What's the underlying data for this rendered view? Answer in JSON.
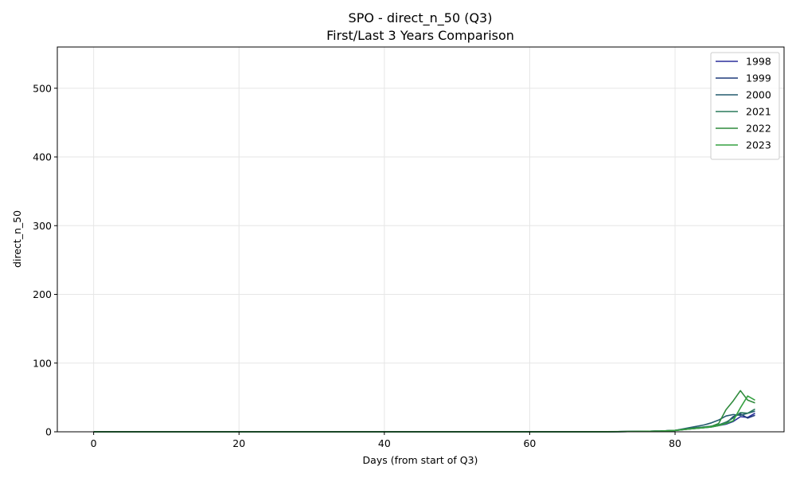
{
  "chart_data": {
    "type": "line",
    "title": "SPO - direct_n_50 (Q3)",
    "subtitle": "First/Last 3 Years Comparison",
    "xlabel": "Days (from start of Q3)",
    "ylabel": "direct_n_50",
    "xlim": [
      -5,
      95
    ],
    "ylim": [
      0,
      560
    ],
    "xticks": [
      0,
      20,
      40,
      60,
      80
    ],
    "yticks": [
      0,
      100,
      200,
      300,
      400,
      500
    ],
    "grid": true,
    "legend_position": "top-right",
    "series": [
      {
        "name": "1998",
        "color": "#2b2f9c",
        "x": [
          0,
          10,
          20,
          30,
          40,
          50,
          60,
          65,
          70,
          75,
          78,
          80,
          82,
          84,
          85,
          86,
          87,
          88,
          89,
          90,
          91
        ],
        "y": [
          0,
          0,
          0,
          0,
          0,
          0,
          0,
          0,
          0,
          0.5,
          1,
          2,
          4,
          6,
          7,
          9,
          11,
          15,
          22,
          21,
          27
        ]
      },
      {
        "name": "1999",
        "color": "#1f3a7a",
        "x": [
          0,
          10,
          20,
          30,
          40,
          50,
          60,
          65,
          70,
          75,
          78,
          80,
          82,
          84,
          85,
          86,
          87,
          88,
          89,
          90,
          91
        ],
        "y": [
          0,
          0,
          0,
          0,
          0,
          0,
          0,
          0,
          0,
          0.5,
          1,
          2,
          5,
          7,
          8,
          10,
          12,
          22,
          26,
          20,
          24
        ]
      },
      {
        "name": "2000",
        "color": "#245a6e",
        "x": [
          0,
          10,
          20,
          30,
          40,
          50,
          60,
          65,
          70,
          75,
          78,
          80,
          82,
          84,
          85,
          86,
          87,
          88,
          89,
          90,
          91
        ],
        "y": [
          0,
          0,
          0,
          0,
          0,
          0,
          0,
          0,
          0,
          0.5,
          1,
          2,
          6,
          10,
          13,
          17,
          23,
          25,
          24,
          27,
          30
        ]
      },
      {
        "name": "2021",
        "color": "#2a7a5c",
        "x": [
          0,
          10,
          20,
          30,
          40,
          50,
          60,
          65,
          70,
          75,
          78,
          80,
          82,
          84,
          85,
          86,
          87,
          88,
          89,
          90,
          91
        ],
        "y": [
          0,
          0,
          0,
          0,
          0,
          0,
          0,
          0,
          0,
          0.5,
          1,
          2,
          5,
          7,
          8,
          10,
          14,
          20,
          28,
          27,
          33
        ]
      },
      {
        "name": "2022",
        "color": "#2f8a3c",
        "x": [
          0,
          10,
          20,
          30,
          40,
          50,
          60,
          65,
          70,
          75,
          78,
          80,
          82,
          84,
          85,
          86,
          87,
          88,
          89,
          90,
          91
        ],
        "y": [
          0,
          0,
          0,
          0,
          0,
          0,
          0,
          0,
          0.2,
          0.5,
          1,
          2,
          4,
          6,
          8,
          12,
          32,
          45,
          60,
          46,
          42
        ]
      },
      {
        "name": "2023",
        "color": "#35a040",
        "x": [
          0,
          10,
          20,
          30,
          40,
          50,
          60,
          65,
          70,
          75,
          78,
          80,
          82,
          84,
          85,
          86,
          87,
          88,
          89,
          90,
          91
        ],
        "y": [
          0,
          0,
          0,
          0,
          0,
          0,
          0,
          0,
          0,
          0.5,
          1,
          2,
          4,
          6,
          7,
          9,
          12,
          16,
          35,
          52,
          46
        ]
      }
    ]
  }
}
